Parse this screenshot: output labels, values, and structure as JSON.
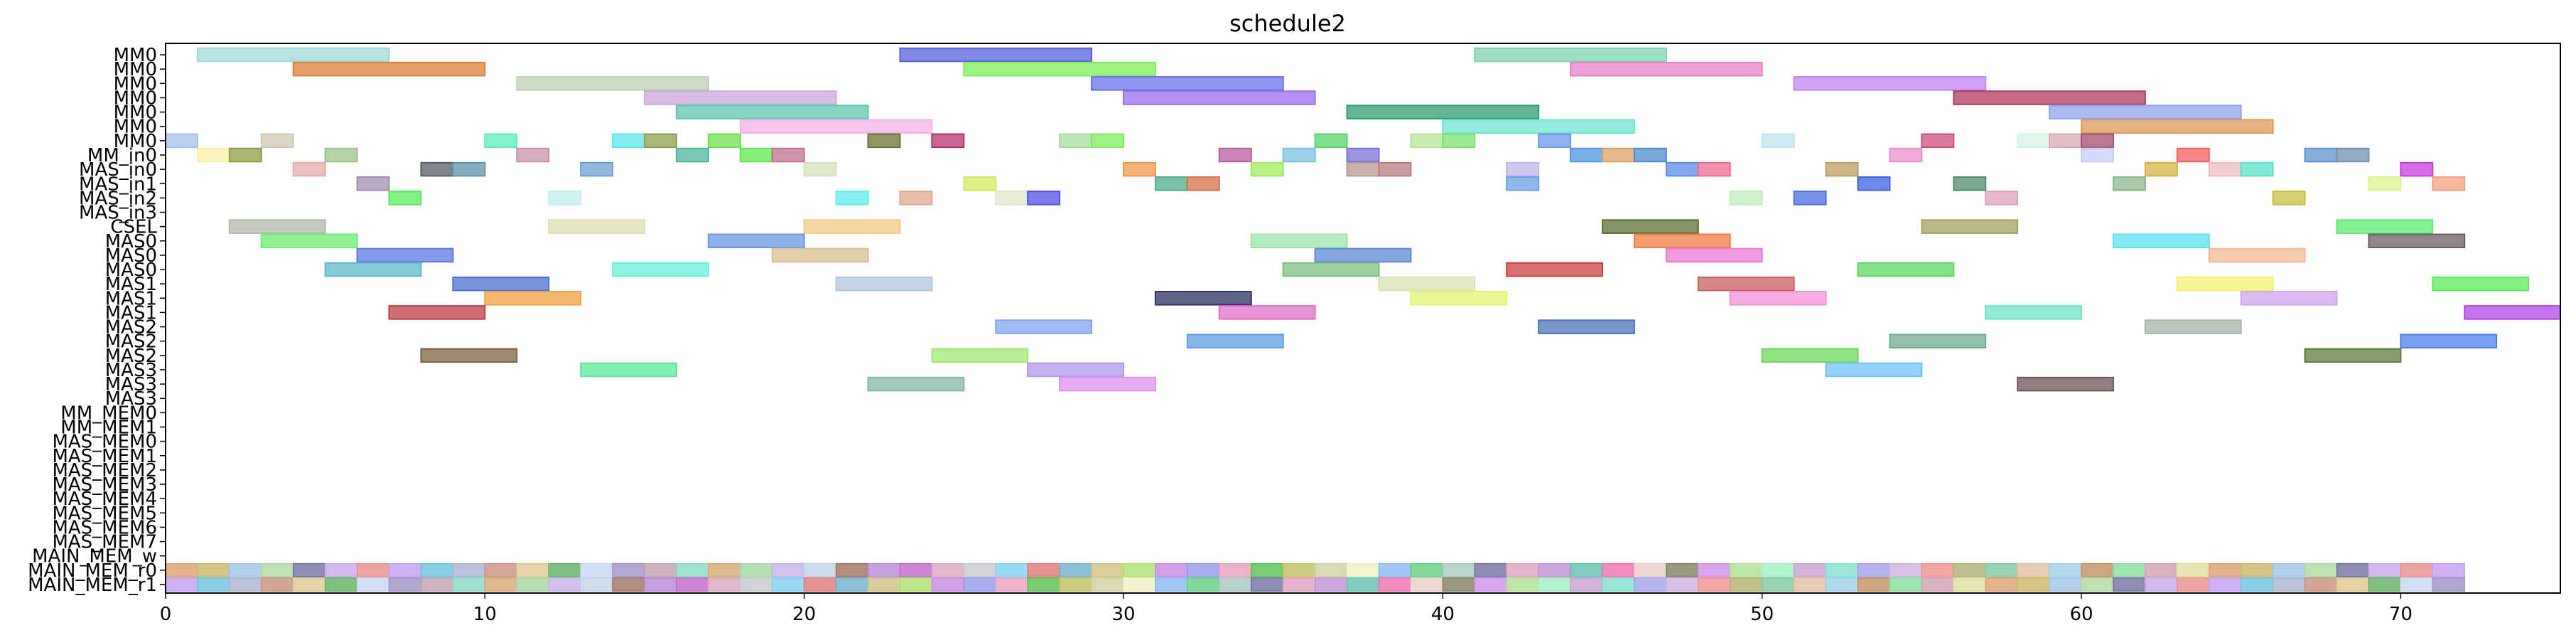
{
  "chart_data": {
    "type": "gantt",
    "title": "schedule2",
    "xlabel": "",
    "ylabel": "",
    "xlim": [
      0,
      75
    ],
    "xticks": [
      0,
      10,
      20,
      30,
      40,
      50,
      60,
      70
    ],
    "grid": false,
    "rows": [
      "MM0",
      "MM0",
      "MM0",
      "MM0",
      "MM0",
      "MM0",
      "MM0",
      "MM_in0",
      "MAS_in0",
      "MAS_in1",
      "MAS_in2",
      "MAS_in3",
      "CSEL",
      "MAS0",
      "MAS0",
      "MAS0",
      "MAS1",
      "MAS1",
      "MAS1",
      "MAS2",
      "MAS2",
      "MAS2",
      "MAS3",
      "MAS3",
      "MAS3",
      "MM_MEM0",
      "MM_MEM1",
      "MAS_MEM0",
      "MAS_MEM1",
      "MAS_MEM2",
      "MAS_MEM3",
      "MAS_MEM4",
      "MAS_MEM5",
      "MAS_MEM6",
      "MAS_MEM7",
      "MAIN_MEM_w",
      "MAIN_MEM_r0",
      "MAIN_MEM_r1"
    ],
    "bars": [
      {
        "row": 0,
        "start": 1,
        "end": 7,
        "color": "#9fd8d8"
      },
      {
        "row": 0,
        "start": 23,
        "end": 29,
        "color": "#5a62d8"
      },
      {
        "row": 0,
        "start": 41,
        "end": 47,
        "color": "#7fd3b0"
      },
      {
        "row": 1,
        "start": 4,
        "end": 10,
        "color": "#de7f3a"
      },
      {
        "row": 1,
        "start": 25,
        "end": 31,
        "color": "#7fee58"
      },
      {
        "row": 1,
        "start": 44,
        "end": 50,
        "color": "#e87fc8"
      },
      {
        "row": 2,
        "start": 11,
        "end": 17,
        "color": "#bdd0b4"
      },
      {
        "row": 2,
        "start": 29,
        "end": 35,
        "color": "#6a70e8"
      },
      {
        "row": 2,
        "start": 51,
        "end": 57,
        "color": "#c084f0"
      },
      {
        "row": 3,
        "start": 15,
        "end": 21,
        "color": "#cba8de"
      },
      {
        "row": 3,
        "start": 30,
        "end": 36,
        "color": "#9b6ef0"
      },
      {
        "row": 3,
        "start": 56,
        "end": 62,
        "color": "#b13c5c"
      },
      {
        "row": 4,
        "start": 16,
        "end": 22,
        "color": "#5ec5b0"
      },
      {
        "row": 4,
        "start": 37,
        "end": 43,
        "color": "#2c9c6e"
      },
      {
        "row": 4,
        "start": 59,
        "end": 65,
        "color": "#8fa4ee"
      },
      {
        "row": 5,
        "start": 18,
        "end": 24,
        "color": "#f2b2e6"
      },
      {
        "row": 5,
        "start": 40,
        "end": 46,
        "color": "#6ee4d0"
      },
      {
        "row": 5,
        "start": 60,
        "end": 66,
        "color": "#dc9a58"
      },
      {
        "row": 6,
        "start": 0,
        "end": 1,
        "color": "#a4c0e8"
      },
      {
        "row": 6,
        "start": 3,
        "end": 4,
        "color": "#cfc8b0"
      },
      {
        "row": 6,
        "start": 10,
        "end": 11,
        "color": "#5cecb8"
      },
      {
        "row": 6,
        "start": 14,
        "end": 15,
        "color": "#5ae8ee"
      },
      {
        "row": 6,
        "start": 15,
        "end": 16,
        "color": "#8a9e4c"
      },
      {
        "row": 6,
        "start": 17,
        "end": 18,
        "color": "#6ee04c"
      },
      {
        "row": 6,
        "start": 22,
        "end": 23,
        "color": "#6c7030"
      },
      {
        "row": 6,
        "start": 24,
        "end": 25,
        "color": "#b4306c"
      },
      {
        "row": 6,
        "start": 28,
        "end": 29,
        "color": "#a8dc9c"
      },
      {
        "row": 6,
        "start": 29,
        "end": 30,
        "color": "#7cec5a"
      },
      {
        "row": 6,
        "start": 36,
        "end": 37,
        "color": "#56d46a"
      },
      {
        "row": 6,
        "start": 39,
        "end": 40,
        "color": "#b8e494"
      },
      {
        "row": 6,
        "start": 40,
        "end": 41,
        "color": "#7ce070"
      },
      {
        "row": 6,
        "start": 43,
        "end": 44,
        "color": "#6c96e8"
      },
      {
        "row": 6,
        "start": 50,
        "end": 51,
        "color": "#bce4ec"
      },
      {
        "row": 6,
        "start": 55,
        "end": 56,
        "color": "#cc4c7c"
      },
      {
        "row": 6,
        "start": 58,
        "end": 59,
        "color": "#d4f4e4"
      },
      {
        "row": 6,
        "start": 59,
        "end": 60,
        "color": "#d8a8b4"
      },
      {
        "row": 6,
        "start": 60,
        "end": 61,
        "color": "#a04c6c"
      },
      {
        "row": 7,
        "start": 1,
        "end": 2,
        "color": "#fff0a8"
      },
      {
        "row": 7,
        "start": 2,
        "end": 3,
        "color": "#8c9c44"
      },
      {
        "row": 7,
        "start": 5,
        "end": 6,
        "color": "#9cc488"
      },
      {
        "row": 7,
        "start": 11,
        "end": 12,
        "color": "#c890a8"
      },
      {
        "row": 7,
        "start": 16,
        "end": 17,
        "color": "#4cb49c"
      },
      {
        "row": 7,
        "start": 18,
        "end": 19,
        "color": "#5ee84c"
      },
      {
        "row": 7,
        "start": 19,
        "end": 20,
        "color": "#c07090"
      },
      {
        "row": 7,
        "start": 33,
        "end": 34,
        "color": "#b85ca0"
      },
      {
        "row": 7,
        "start": 35,
        "end": 36,
        "color": "#7cc0e4"
      },
      {
        "row": 7,
        "start": 37,
        "end": 38,
        "color": "#7c70d8"
      },
      {
        "row": 7,
        "start": 44,
        "end": 45,
        "color": "#4c94e4"
      },
      {
        "row": 7,
        "start": 45,
        "end": 46,
        "color": "#dca068"
      },
      {
        "row": 7,
        "start": 46,
        "end": 47,
        "color": "#4c8ccc"
      },
      {
        "row": 7,
        "start": 54,
        "end": 55,
        "color": "#e890c8"
      },
      {
        "row": 7,
        "start": 60,
        "end": 61,
        "color": "#c8ccf4"
      },
      {
        "row": 7,
        "start": 63,
        "end": 64,
        "color": "#f46060"
      },
      {
        "row": 7,
        "start": 67,
        "end": 68,
        "color": "#5c94c8"
      },
      {
        "row": 7,
        "start": 68,
        "end": 69,
        "color": "#7090b0"
      },
      {
        "row": 8,
        "start": 4,
        "end": 5,
        "color": "#e4aca8"
      },
      {
        "row": 8,
        "start": 8,
        "end": 9,
        "color": "#585c64"
      },
      {
        "row": 8,
        "start": 9,
        "end": 10,
        "color": "#5c94ac"
      },
      {
        "row": 8,
        "start": 13,
        "end": 14,
        "color": "#6ca0d4"
      },
      {
        "row": 8,
        "start": 20,
        "end": 21,
        "color": "#d4e0bc"
      },
      {
        "row": 8,
        "start": 30,
        "end": 31,
        "color": "#f09848"
      },
      {
        "row": 8,
        "start": 34,
        "end": 35,
        "color": "#a0ec5c"
      },
      {
        "row": 8,
        "start": 37,
        "end": 38,
        "color": "#b89890"
      },
      {
        "row": 8,
        "start": 38,
        "end": 39,
        "color": "#b87c80"
      },
      {
        "row": 8,
        "start": 42,
        "end": 43,
        "color": "#c0b4ec"
      },
      {
        "row": 8,
        "start": 47,
        "end": 48,
        "color": "#5c8ce8"
      },
      {
        "row": 8,
        "start": 48,
        "end": 49,
        "color": "#f06c90"
      },
      {
        "row": 8,
        "start": 52,
        "end": 53,
        "color": "#bc9c5c"
      },
      {
        "row": 8,
        "start": 62,
        "end": 63,
        "color": "#d4b444"
      },
      {
        "row": 8,
        "start": 64,
        "end": 65,
        "color": "#ecbcc0"
      },
      {
        "row": 8,
        "start": 65,
        "end": 66,
        "color": "#5ce0c8"
      },
      {
        "row": 8,
        "start": 70,
        "end": 71,
        "color": "#c83cdc"
      },
      {
        "row": 9,
        "start": 6,
        "end": 7,
        "color": "#a08cb0"
      },
      {
        "row": 9,
        "start": 25,
        "end": 26,
        "color": "#d0e85c"
      },
      {
        "row": 9,
        "start": 31,
        "end": 32,
        "color": "#4cac8c"
      },
      {
        "row": 9,
        "start": 32,
        "end": 33,
        "color": "#d8704c"
      },
      {
        "row": 9,
        "start": 42,
        "end": 43,
        "color": "#6ca0e4"
      },
      {
        "row": 9,
        "start": 53,
        "end": 54,
        "color": "#3c60e0"
      },
      {
        "row": 9,
        "start": 56,
        "end": 57,
        "color": "#4c8c6c"
      },
      {
        "row": 9,
        "start": 61,
        "end": 62,
        "color": "#8cb48c"
      },
      {
        "row": 9,
        "start": 69,
        "end": 70,
        "color": "#dcf48c"
      },
      {
        "row": 9,
        "start": 71,
        "end": 72,
        "color": "#f4a080"
      },
      {
        "row": 10,
        "start": 7,
        "end": 8,
        "color": "#5ce85c"
      },
      {
        "row": 10,
        "start": 12,
        "end": 13,
        "color": "#bcf0ec"
      },
      {
        "row": 10,
        "start": 21,
        "end": 22,
        "color": "#5cecf0"
      },
      {
        "row": 10,
        "start": 23,
        "end": 24,
        "color": "#e4a890"
      },
      {
        "row": 10,
        "start": 26,
        "end": 27,
        "color": "#e0e8cc"
      },
      {
        "row": 10,
        "start": 27,
        "end": 28,
        "color": "#5050e8"
      },
      {
        "row": 10,
        "start": 49,
        "end": 50,
        "color": "#c0ecbc"
      },
      {
        "row": 10,
        "start": 51,
        "end": 52,
        "color": "#4c6ce4"
      },
      {
        "row": 10,
        "start": 57,
        "end": 58,
        "color": "#e0a0bc"
      },
      {
        "row": 10,
        "start": 66,
        "end": 67,
        "color": "#c8c040"
      },
      {
        "row": 12,
        "start": 2,
        "end": 5,
        "color": "#b0b8a8"
      },
      {
        "row": 12,
        "start": 12,
        "end": 15,
        "color": "#dcdcb0"
      },
      {
        "row": 12,
        "start": 20,
        "end": 23,
        "color": "#f4c888"
      },
      {
        "row": 12,
        "start": 45,
        "end": 48,
        "color": "#5c7030"
      },
      {
        "row": 12,
        "start": 55,
        "end": 58,
        "color": "#a4a060"
      },
      {
        "row": 12,
        "start": 68,
        "end": 71,
        "color": "#5cec70"
      },
      {
        "row": 13,
        "start": 3,
        "end": 6,
        "color": "#6cec70"
      },
      {
        "row": 13,
        "start": 17,
        "end": 20,
        "color": "#6898e0"
      },
      {
        "row": 13,
        "start": 34,
        "end": 37,
        "color": "#9ce4a8"
      },
      {
        "row": 13,
        "start": 46,
        "end": 49,
        "color": "#f07c44"
      },
      {
        "row": 13,
        "start": 61,
        "end": 64,
        "color": "#5ce0f4"
      },
      {
        "row": 13,
        "start": 69,
        "end": 72,
        "color": "#6c5c64"
      },
      {
        "row": 14,
        "start": 6,
        "end": 9,
        "color": "#5c78e0"
      },
      {
        "row": 14,
        "start": 19,
        "end": 22,
        "color": "#d8c090"
      },
      {
        "row": 14,
        "start": 36,
        "end": 39,
        "color": "#5c88d4"
      },
      {
        "row": 14,
        "start": 47,
        "end": 50,
        "color": "#ec78d4"
      },
      {
        "row": 14,
        "start": 64,
        "end": 67,
        "color": "#f4b898"
      },
      {
        "row": 15,
        "start": 5,
        "end": 8,
        "color": "#5cb8c8"
      },
      {
        "row": 15,
        "start": 14,
        "end": 17,
        "color": "#6cf0d8"
      },
      {
        "row": 15,
        "start": 35,
        "end": 38,
        "color": "#7cc080"
      },
      {
        "row": 15,
        "start": 42,
        "end": 45,
        "color": "#cc4040"
      },
      {
        "row": 15,
        "start": 53,
        "end": 56,
        "color": "#5cd860"
      },
      {
        "row": 16,
        "start": 9,
        "end": 12,
        "color": "#4c70d0"
      },
      {
        "row": 16,
        "start": 21,
        "end": 24,
        "color": "#b0c4dc"
      },
      {
        "row": 16,
        "start": 38,
        "end": 41,
        "color": "#dce0b4"
      },
      {
        "row": 16,
        "start": 48,
        "end": 51,
        "color": "#c86060"
      },
      {
        "row": 16,
        "start": 63,
        "end": 66,
        "color": "#f4f070"
      },
      {
        "row": 16,
        "start": 71,
        "end": 74,
        "color": "#5cec5c"
      },
      {
        "row": 17,
        "start": 10,
        "end": 13,
        "color": "#f0a040"
      },
      {
        "row": 17,
        "start": 31,
        "end": 34,
        "color": "#2c3064"
      },
      {
        "row": 17,
        "start": 39,
        "end": 42,
        "color": "#e4f470"
      },
      {
        "row": 17,
        "start": 49,
        "end": 52,
        "color": "#f490d8"
      },
      {
        "row": 17,
        "start": 65,
        "end": 68,
        "color": "#d0a4f0"
      },
      {
        "row": 18,
        "start": 7,
        "end": 10,
        "color": "#c03c48"
      },
      {
        "row": 18,
        "start": 33,
        "end": 36,
        "color": "#e070c8"
      },
      {
        "row": 18,
        "start": 57,
        "end": 60,
        "color": "#6ce4c8"
      },
      {
        "row": 18,
        "start": 72,
        "end": 75,
        "color": "#b444e8"
      },
      {
        "row": 19,
        "start": 26,
        "end": 29,
        "color": "#80a4f0"
      },
      {
        "row": 19,
        "start": 43,
        "end": 46,
        "color": "#4c74b8"
      },
      {
        "row": 19,
        "start": 62,
        "end": 65,
        "color": "#a4b4a4"
      },
      {
        "row": 20,
        "start": 32,
        "end": 35,
        "color": "#5c9ce4"
      },
      {
        "row": 20,
        "start": 54,
        "end": 57,
        "color": "#6cac90"
      },
      {
        "row": 20,
        "start": 70,
        "end": 73,
        "color": "#4c80e8"
      },
      {
        "row": 21,
        "start": 8,
        "end": 11,
        "color": "#7c6040"
      },
      {
        "row": 21,
        "start": 24,
        "end": 27,
        "color": "#a0e870"
      },
      {
        "row": 21,
        "start": 50,
        "end": 53,
        "color": "#6cd85c"
      },
      {
        "row": 21,
        "start": 67,
        "end": 70,
        "color": "#5c7c3c"
      },
      {
        "row": 22,
        "start": 13,
        "end": 16,
        "color": "#5ce898"
      },
      {
        "row": 22,
        "start": 27,
        "end": 30,
        "color": "#b098e8"
      },
      {
        "row": 22,
        "start": 52,
        "end": 55,
        "color": "#70c4f4"
      },
      {
        "row": 23,
        "start": 22,
        "end": 25,
        "color": "#80b8a4"
      },
      {
        "row": 23,
        "start": 28,
        "end": 31,
        "color": "#e090f0"
      },
      {
        "row": 23,
        "start": 58,
        "end": 61,
        "color": "#6c5458"
      }
    ],
    "memory_rows": [
      36,
      37
    ],
    "memory_start": 0,
    "memory_end": 72,
    "memory_colors": [
      "#dca070",
      "#c8b868",
      "#a0c4e8",
      "#b0d8a0",
      "#7070a0",
      "#c8a8e8",
      "#e88c8c",
      "#c0a0f0",
      "#6cc0e0",
      "#a8b4d0",
      "#c89080",
      "#e0c890",
      "#60b060",
      "#c8d8f0",
      "#a090c8",
      "#c0a0b0",
      "#88d8c8",
      "#d4a870",
      "#a4d8a0",
      "#c8b0e8",
      "#c0d4e8",
      "#a07060",
      "#b888d8",
      "#c068c8",
      "#d8a8c0",
      "#c8c8d0",
      "#80d0f0",
      "#e07878",
      "#70b0d0",
      "#d0c080",
      "#b0e070",
      "#c888e0",
      "#9098e8",
      "#e8a0c0",
      "#58c050",
      "#c0c060",
      "#d0d0a0",
      "#f0f0c0",
      "#88b8f0",
      "#60d080",
      "#a8c8c0",
      "#7070a0",
      "#e0a0c0",
      "#c090d8",
      "#60c0b0",
      "#f070b0",
      "#e8d0c8",
      "#808060",
      "#d090e8",
      "#b0e090",
      "#a0f0c0",
      "#c8a0d0",
      "#80e0d0",
      "#a0a0e8",
      "#d0b0e0",
      "#f09090",
      "#b0b070",
      "#80c8a0",
      "#e0c0a0",
      "#a0d0e8",
      "#c09060",
      "#88e0a0",
      "#d0a0b0",
      "#e0e0a0"
    ]
  }
}
